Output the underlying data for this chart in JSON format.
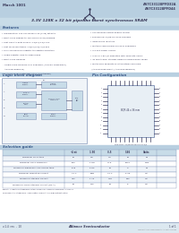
{
  "title_left": "March 1001",
  "title_right_line1": "AS7C33128PFD32A",
  "title_right_line2": "AS7C33128PFD44",
  "header_bg": "#b8cfe0",
  "product_title": "3.3V 128K x 32 bit pipeline burst synchronous SRAM",
  "features_title": "Features",
  "features_left": [
    "Organisation: 131,072 words x 32 (x 36) bit data",
    "Burst clock speeds to 166 MHz in OTTE/TQFBGE",
    "Fast clock to data access: 4.5/5.5/6.5/7.5ns",
    "Fast CE access times: 4.5/5.5/6.5/7.5/8.5ns",
    "Fully synchronous register to register operation",
    "Single register flow-through mode",
    "Burst cycle freedom",
    "  - Single cycle freedom also available (AS7C33 128PFD32A/",
    "    AS7C33128PFD44)",
    "MultiComp compatible solution (and timing)"
  ],
  "features_right": [
    "Synchronous output enable control",
    "Economical 44/48-pin PLSP package",
    "Input series resistors",
    "Multiple chip enables for easy expansion",
    "3.3-volt power supply",
    "3.3V or 1.8V I/O operation with separate VDDQ",
    "40 mW typical standby power in power-down mode",
    "MultiComp products as alternatives available:",
    "  (AS7C33128PFD32A / AS7C33128PFD44)"
  ],
  "logic_block_title": "Logic block diagram",
  "pin_config_title": "Pin Configuration",
  "selection_guide_title": "Selection guide",
  "table_headers": [
    "-4 nt",
    "1 30",
    "-3.5",
    "-166",
    "Units"
  ],
  "table_rows": [
    [
      "Minimum cycle time",
      "10",
      "6.5",
      "7.5",
      "10",
      "ns"
    ],
    [
      "Minimum clock frequency",
      "100",
      "1 RQ",
      "O+5",
      "1000",
      "MHz"
    ],
    [
      "Maximum pipelined clock access time",
      "8.75",
      "5 R0",
      "10",
      "9",
      "ns"
    ],
    [
      "Minimum operating current",
      "40 V",
      "60M",
      "40 V",
      "5 V5",
      "mA"
    ],
    [
      "Maximum standby current",
      "C10",
      "1 13",
      "O4R",
      "400",
      "mA"
    ],
    [
      "Maximum CMOS standby current (No A)",
      "15",
      "110",
      "10",
      "5",
      "mA"
    ]
  ],
  "footer_left": "v.1.4  rev  -  10",
  "footer_center": "Alliance Semiconductor",
  "footer_right": "1 of 1",
  "bg_color": "#ffffff",
  "header_bar_bg": "#b8cfe0",
  "section_title_bg": "#c8dce8",
  "table_header_bg": "#c8dce8",
  "table_alt_bg": "#eef3f8",
  "text_color": "#3a3a5a",
  "blue_text": "#3a5a8a",
  "border_color": "#8899bb",
  "diagram_bg": "#dde8f0",
  "diagram_box_bg": "#c8dce8",
  "ic_bg": "#e8eff5",
  "footer_bg": "#dce8f0"
}
